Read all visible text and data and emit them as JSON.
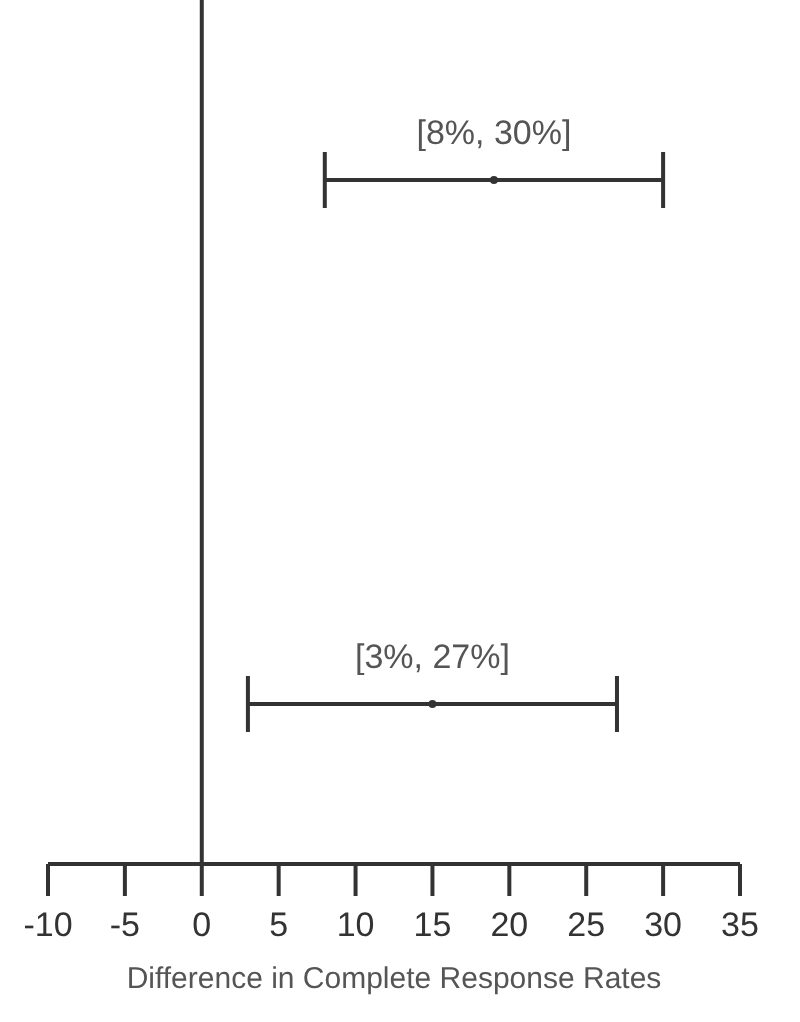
{
  "chart_data": {
    "type": "scatter",
    "orientation": "horizontal",
    "categories": [
      null,
      null
    ],
    "values": [
      19,
      15
    ],
    "errors": [
      [
        8,
        30
      ],
      [
        3,
        27
      ]
    ],
    "value_labels": [
      "[8%, 30%]",
      "[3%, 27%]"
    ],
    "color": "#333333",
    "marker": "circle",
    "xlim": [
      -10,
      35
    ],
    "xticks": [
      -10,
      -5,
      0,
      5,
      10,
      15,
      20,
      25,
      30,
      35
    ],
    "xlabel": "Difference in Complete Response Rates",
    "ref_lines": [
      {
        "axis": "x",
        "value": 0,
        "color": "#333333"
      }
    ],
    "tick_labels": "x",
    "grid": false
  }
}
